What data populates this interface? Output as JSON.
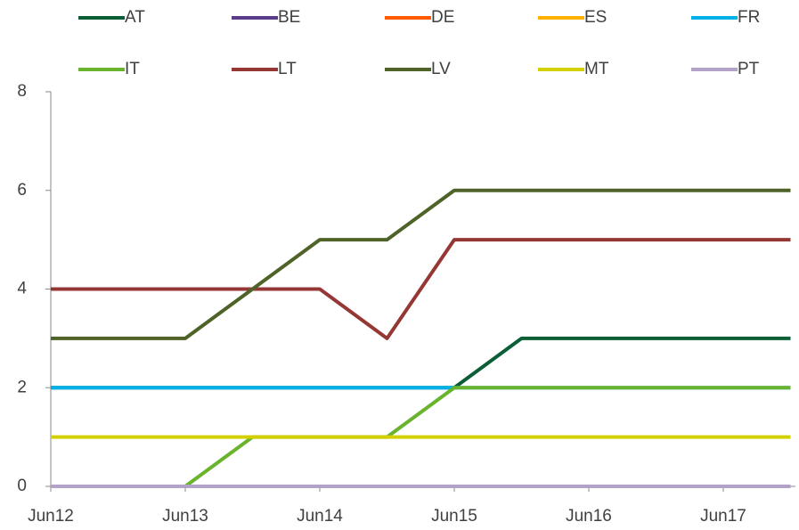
{
  "chart_data": {
    "type": "line",
    "categories": [
      "Jun12",
      null,
      "Jun13",
      null,
      "Jun14",
      null,
      "Jun15",
      null,
      "Jun16",
      null,
      "Jun17",
      null
    ],
    "series": [
      {
        "name": "AT",
        "color": "#0b5e36",
        "values": [
          2,
          2,
          2,
          2,
          2,
          2,
          2,
          3,
          3,
          3,
          3,
          3
        ]
      },
      {
        "name": "BE",
        "color": "#5a3d8a",
        "values": [
          0,
          0,
          0,
          0,
          0,
          0,
          0,
          0,
          0,
          0,
          0,
          0
        ]
      },
      {
        "name": "DE",
        "color": "#ff5a00",
        "values": [
          0,
          0,
          0,
          0,
          0,
          0,
          0,
          0,
          0,
          0,
          0,
          0
        ]
      },
      {
        "name": "ES",
        "color": "#ffb000",
        "values": [
          0,
          0,
          0,
          0,
          0,
          0,
          0,
          0,
          0,
          0,
          0,
          0
        ]
      },
      {
        "name": "FR",
        "color": "#00b0e8",
        "values": [
          2,
          2,
          2,
          2,
          2,
          2,
          2,
          2,
          2,
          2,
          2,
          2
        ]
      },
      {
        "name": "IT",
        "color": "#6ab42d",
        "values": [
          0,
          0,
          0,
          1,
          1,
          1,
          2,
          2,
          2,
          2,
          2,
          2
        ]
      },
      {
        "name": "LT",
        "color": "#953735",
        "values": [
          4,
          4,
          4,
          4,
          4,
          3,
          5,
          5,
          5,
          5,
          5,
          5
        ]
      },
      {
        "name": "LV",
        "color": "#4f6228",
        "values": [
          3,
          3,
          3,
          4,
          5,
          5,
          6,
          6,
          6,
          6,
          6,
          6
        ]
      },
      {
        "name": "MT",
        "color": "#d4d000",
        "values": [
          1,
          1,
          1,
          1,
          1,
          1,
          1,
          1,
          1,
          1,
          1,
          1
        ]
      },
      {
        "name": "PT",
        "color": "#b3a2c7",
        "values": [
          0,
          0,
          0,
          0,
          0,
          0,
          0,
          0,
          0,
          0,
          0,
          0
        ]
      }
    ],
    "ylim": [
      0,
      8
    ],
    "yticks": [
      0,
      2,
      4,
      6,
      8
    ],
    "grid": false,
    "legend": "top"
  }
}
